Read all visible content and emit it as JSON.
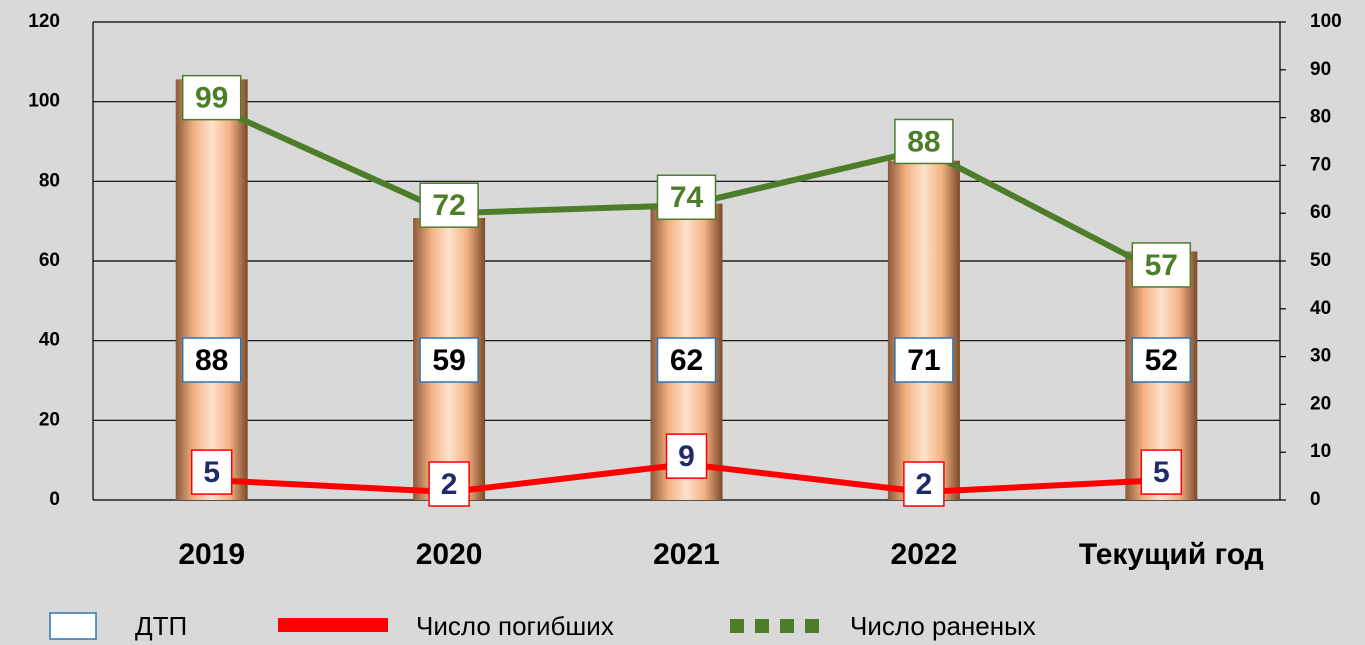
{
  "chart_data": {
    "type": "bar",
    "categories": [
      "2019",
      "2020",
      "2021",
      "2022",
      "Текущий год"
    ],
    "ylim": [
      0,
      120
    ],
    "yticks": [
      0,
      20,
      40,
      60,
      80,
      100,
      120
    ],
    "y2lim": [
      0,
      100
    ],
    "y2ticks": [
      0,
      10,
      20,
      30,
      40,
      50,
      60,
      70,
      80,
      90,
      100
    ],
    "grid": true,
    "series": [
      {
        "name": "ДТП",
        "type": "bar",
        "axis": "y2",
        "color": "#f4b183",
        "values": [
          88,
          59,
          62,
          71,
          52
        ]
      },
      {
        "name": "Число погибших",
        "type": "line",
        "color": "#ff0000",
        "values": [
          5,
          2,
          9,
          2,
          5
        ]
      },
      {
        "name": "Число раненых",
        "type": "line",
        "color": "#4e7d2a",
        "values": [
          99,
          72,
          74,
          88,
          57
        ]
      }
    ]
  }
}
